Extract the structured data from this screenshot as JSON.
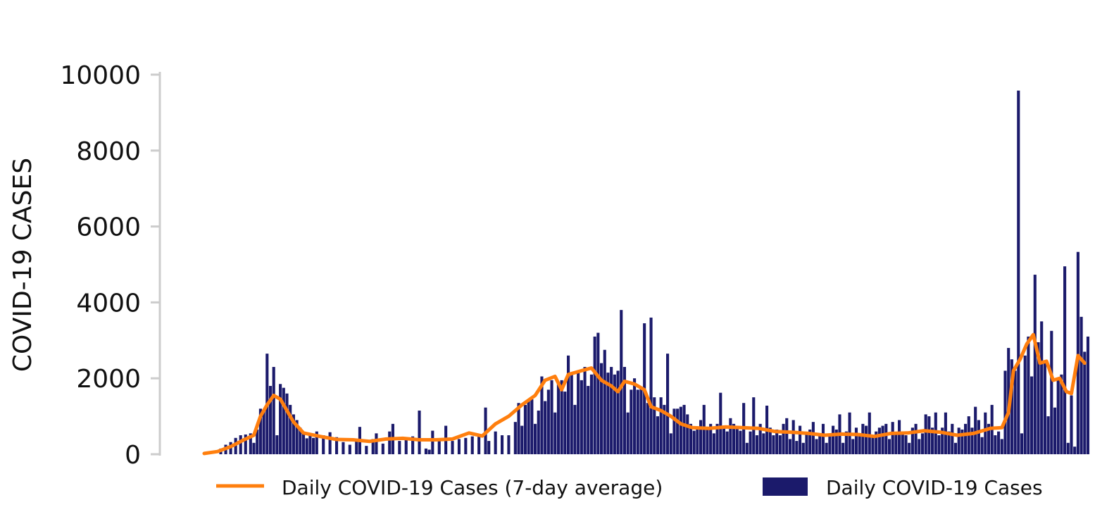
{
  "chart_data": {
    "type": "bar",
    "title": "",
    "xlabel": "",
    "ylabel": "COVID-19 CASES",
    "ylim": [
      0,
      10000
    ],
    "yticks": [
      0,
      2000,
      4000,
      6000,
      8000,
      10000
    ],
    "grid": false,
    "legend_position": "bottom",
    "x_index_label": "day index (0 = first day shown)",
    "series": [
      {
        "name": "Daily COVID-19 Cases (7-day average)",
        "kind": "line",
        "color": "#ff7f0e",
        "points": [
          [
            0,
            20
          ],
          [
            8,
            70
          ],
          [
            16,
            200
          ],
          [
            24,
            380
          ],
          [
            30,
            500
          ],
          [
            34,
            1000
          ],
          [
            38,
            1300
          ],
          [
            42,
            1550
          ],
          [
            46,
            1450
          ],
          [
            50,
            1150
          ],
          [
            54,
            850
          ],
          [
            60,
            560
          ],
          [
            70,
            470
          ],
          [
            80,
            390
          ],
          [
            90,
            380
          ],
          [
            100,
            340
          ],
          [
            110,
            400
          ],
          [
            120,
            420
          ],
          [
            130,
            380
          ],
          [
            140,
            380
          ],
          [
            150,
            400
          ],
          [
            160,
            560
          ],
          [
            168,
            480
          ],
          [
            176,
            800
          ],
          [
            184,
            1000
          ],
          [
            192,
            1300
          ],
          [
            200,
            1550
          ],
          [
            206,
            1950
          ],
          [
            212,
            2050
          ],
          [
            216,
            1700
          ],
          [
            220,
            2100
          ],
          [
            228,
            2200
          ],
          [
            234,
            2270
          ],
          [
            240,
            1950
          ],
          [
            246,
            1800
          ],
          [
            250,
            1650
          ],
          [
            254,
            1920
          ],
          [
            260,
            1850
          ],
          [
            266,
            1700
          ],
          [
            270,
            1250
          ],
          [
            276,
            1150
          ],
          [
            282,
            1000
          ],
          [
            288,
            800
          ],
          [
            295,
            700
          ],
          [
            305,
            680
          ],
          [
            315,
            720
          ],
          [
            325,
            700
          ],
          [
            335,
            680
          ],
          [
            345,
            600
          ],
          [
            355,
            580
          ],
          [
            365,
            550
          ],
          [
            375,
            500
          ],
          [
            385,
            530
          ],
          [
            395,
            520
          ],
          [
            405,
            470
          ],
          [
            415,
            550
          ],
          [
            425,
            560
          ],
          [
            435,
            620
          ],
          [
            445,
            580
          ],
          [
            455,
            500
          ],
          [
            465,
            550
          ],
          [
            475,
            680
          ],
          [
            482,
            700
          ],
          [
            486,
            1100
          ],
          [
            489,
            2200
          ],
          [
            493,
            2500
          ],
          [
            497,
            2900
          ],
          [
            501,
            3150
          ],
          [
            505,
            2400
          ],
          [
            509,
            2450
          ],
          [
            513,
            1950
          ],
          [
            517,
            2000
          ],
          [
            521,
            1650
          ],
          [
            524,
            1600
          ],
          [
            528,
            2600
          ],
          [
            532,
            2400
          ]
        ]
      },
      {
        "name": "Daily COVID-19 Cases",
        "kind": "bar",
        "color": "#1b1a6b",
        "bars": [
          [
            10,
            150
          ],
          [
            13,
            250
          ],
          [
            16,
            320
          ],
          [
            19,
            430
          ],
          [
            22,
            500
          ],
          [
            25,
            520
          ],
          [
            28,
            550
          ],
          [
            30,
            300
          ],
          [
            32,
            650
          ],
          [
            34,
            1200
          ],
          [
            36,
            1180
          ],
          [
            38,
            2650
          ],
          [
            40,
            1800
          ],
          [
            42,
            2300
          ],
          [
            44,
            500
          ],
          [
            46,
            1850
          ],
          [
            48,
            1750
          ],
          [
            50,
            1600
          ],
          [
            52,
            1300
          ],
          [
            54,
            1050
          ],
          [
            56,
            900
          ],
          [
            58,
            700
          ],
          [
            60,
            580
          ],
          [
            62,
            420
          ],
          [
            64,
            550
          ],
          [
            66,
            430
          ],
          [
            68,
            600
          ],
          [
            72,
            500
          ],
          [
            76,
            580
          ],
          [
            80,
            450
          ],
          [
            84,
            320
          ],
          [
            88,
            250
          ],
          [
            92,
            350
          ],
          [
            94,
            720
          ],
          [
            98,
            220
          ],
          [
            102,
            400
          ],
          [
            104,
            550
          ],
          [
            108,
            280
          ],
          [
            112,
            600
          ],
          [
            114,
            800
          ],
          [
            118,
            350
          ],
          [
            122,
            420
          ],
          [
            126,
            470
          ],
          [
            130,
            1150
          ],
          [
            134,
            150
          ],
          [
            136,
            120
          ],
          [
            138,
            620
          ],
          [
            142,
            400
          ],
          [
            146,
            750
          ],
          [
            150,
            350
          ],
          [
            154,
            400
          ],
          [
            158,
            430
          ],
          [
            162,
            470
          ],
          [
            166,
            520
          ],
          [
            170,
            1230
          ],
          [
            172,
            350
          ],
          [
            176,
            600
          ],
          [
            180,
            500
          ],
          [
            184,
            500
          ],
          [
            188,
            850
          ],
          [
            190,
            1350
          ],
          [
            192,
            750
          ],
          [
            194,
            1300
          ],
          [
            196,
            1400
          ],
          [
            198,
            1450
          ],
          [
            200,
            800
          ],
          [
            202,
            1150
          ],
          [
            204,
            2050
          ],
          [
            206,
            1400
          ],
          [
            208,
            1700
          ],
          [
            210,
            1950
          ],
          [
            212,
            1100
          ],
          [
            214,
            1900
          ],
          [
            216,
            1950
          ],
          [
            218,
            1650
          ],
          [
            220,
            2600
          ],
          [
            222,
            2100
          ],
          [
            224,
            1300
          ],
          [
            226,
            2200
          ],
          [
            228,
            1950
          ],
          [
            230,
            2300
          ],
          [
            232,
            1800
          ],
          [
            234,
            2100
          ],
          [
            236,
            3100
          ],
          [
            238,
            3200
          ],
          [
            240,
            2400
          ],
          [
            242,
            2750
          ],
          [
            244,
            2150
          ],
          [
            246,
            2300
          ],
          [
            248,
            2100
          ],
          [
            250,
            2200
          ],
          [
            252,
            3800
          ],
          [
            254,
            2300
          ],
          [
            256,
            1100
          ],
          [
            258,
            1700
          ],
          [
            260,
            2000
          ],
          [
            262,
            1700
          ],
          [
            264,
            1750
          ],
          [
            266,
            3450
          ],
          [
            268,
            1350
          ],
          [
            270,
            3600
          ],
          [
            272,
            1500
          ],
          [
            274,
            1000
          ],
          [
            276,
            1500
          ],
          [
            278,
            1300
          ],
          [
            280,
            2650
          ],
          [
            282,
            550
          ],
          [
            284,
            1200
          ],
          [
            286,
            1200
          ],
          [
            288,
            1250
          ],
          [
            290,
            1300
          ],
          [
            292,
            1050
          ],
          [
            294,
            800
          ],
          [
            296,
            620
          ],
          [
            298,
            700
          ],
          [
            300,
            900
          ],
          [
            302,
            1300
          ],
          [
            304,
            700
          ],
          [
            306,
            800
          ],
          [
            308,
            550
          ],
          [
            310,
            800
          ],
          [
            312,
            1620
          ],
          [
            314,
            700
          ],
          [
            316,
            600
          ],
          [
            318,
            950
          ],
          [
            320,
            800
          ],
          [
            322,
            750
          ],
          [
            324,
            620
          ],
          [
            326,
            1350
          ],
          [
            328,
            300
          ],
          [
            330,
            600
          ],
          [
            332,
            1500
          ],
          [
            334,
            500
          ],
          [
            336,
            800
          ],
          [
            338,
            550
          ],
          [
            340,
            1280
          ],
          [
            342,
            700
          ],
          [
            344,
            500
          ],
          [
            346,
            650
          ],
          [
            348,
            500
          ],
          [
            350,
            800
          ],
          [
            352,
            950
          ],
          [
            354,
            400
          ],
          [
            356,
            900
          ],
          [
            358,
            350
          ],
          [
            360,
            750
          ],
          [
            362,
            300
          ],
          [
            364,
            550
          ],
          [
            366,
            650
          ],
          [
            368,
            850
          ],
          [
            370,
            400
          ],
          [
            372,
            550
          ],
          [
            374,
            800
          ],
          [
            376,
            300
          ],
          [
            378,
            500
          ],
          [
            380,
            750
          ],
          [
            382,
            650
          ],
          [
            384,
            1050
          ],
          [
            386,
            300
          ],
          [
            388,
            600
          ],
          [
            390,
            1100
          ],
          [
            392,
            400
          ],
          [
            394,
            700
          ],
          [
            396,
            500
          ],
          [
            398,
            800
          ],
          [
            400,
            750
          ],
          [
            402,
            1100
          ],
          [
            404,
            500
          ],
          [
            406,
            600
          ],
          [
            408,
            700
          ],
          [
            410,
            750
          ],
          [
            412,
            800
          ],
          [
            414,
            400
          ],
          [
            416,
            850
          ],
          [
            418,
            550
          ],
          [
            420,
            900
          ],
          [
            422,
            600
          ],
          [
            424,
            500
          ],
          [
            426,
            300
          ],
          [
            428,
            700
          ],
          [
            430,
            800
          ],
          [
            432,
            400
          ],
          [
            434,
            550
          ],
          [
            436,
            1050
          ],
          [
            438,
            1000
          ],
          [
            440,
            700
          ],
          [
            442,
            1100
          ],
          [
            444,
            500
          ],
          [
            446,
            700
          ],
          [
            448,
            1100
          ],
          [
            450,
            600
          ],
          [
            452,
            800
          ],
          [
            454,
            300
          ],
          [
            456,
            700
          ],
          [
            458,
            650
          ],
          [
            460,
            800
          ],
          [
            462,
            1000
          ],
          [
            464,
            700
          ],
          [
            466,
            1250
          ],
          [
            468,
            900
          ],
          [
            470,
            450
          ],
          [
            472,
            1100
          ],
          [
            474,
            800
          ],
          [
            476,
            1300
          ],
          [
            478,
            500
          ],
          [
            480,
            600
          ],
          [
            482,
            400
          ],
          [
            484,
            2200
          ],
          [
            486,
            2800
          ],
          [
            488,
            2500
          ],
          [
            490,
            2200
          ],
          [
            492,
            9580
          ],
          [
            494,
            550
          ],
          [
            496,
            2600
          ],
          [
            498,
            3100
          ],
          [
            500,
            2050
          ],
          [
            502,
            4730
          ],
          [
            504,
            2950
          ],
          [
            506,
            3500
          ],
          [
            508,
            2400
          ],
          [
            510,
            1000
          ],
          [
            512,
            3250
          ],
          [
            514,
            1230
          ],
          [
            516,
            2000
          ],
          [
            518,
            2100
          ],
          [
            520,
            4950
          ],
          [
            522,
            300
          ],
          [
            524,
            1550
          ],
          [
            526,
            200
          ],
          [
            528,
            5330
          ],
          [
            530,
            3620
          ],
          [
            532,
            2700
          ],
          [
            534,
            3100
          ]
        ]
      }
    ]
  }
}
